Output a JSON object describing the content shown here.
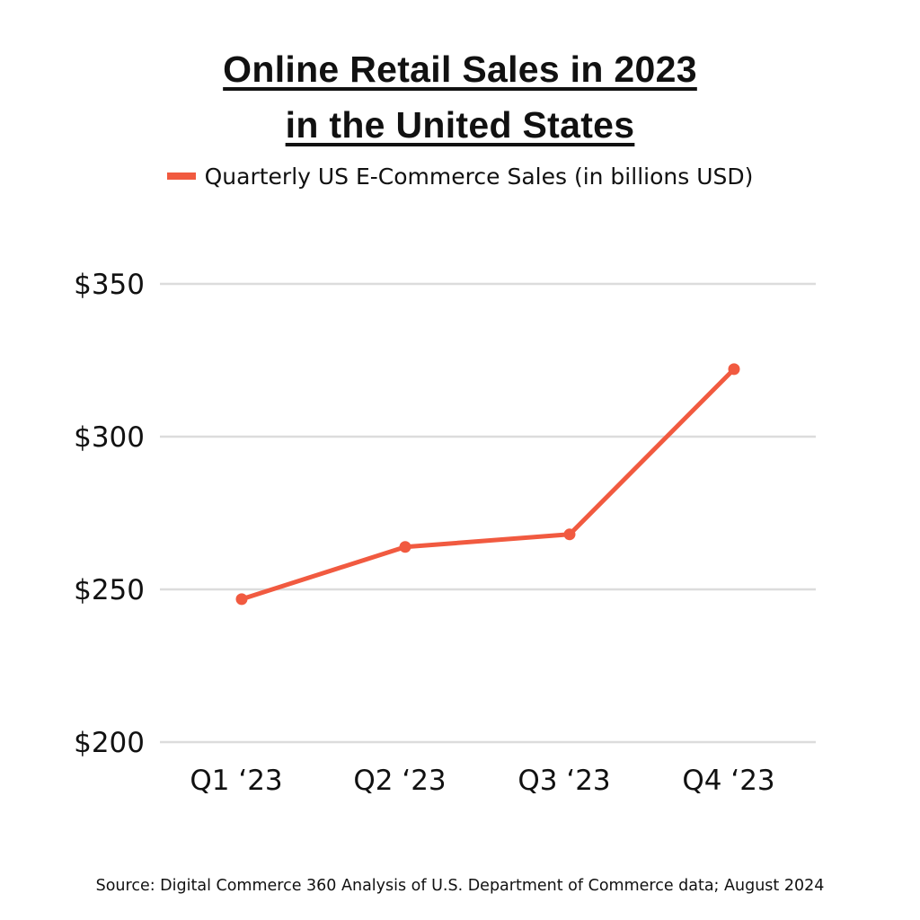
{
  "chart_data": {
    "type": "line",
    "title": "Online Retail Sales in 2023 in the United States",
    "title_lines": [
      "Online Retail Sales in 2023",
      "in the United States"
    ],
    "categories": [
      "Q1 ‘23",
      "Q2 ‘23",
      "Q3 ‘23",
      "Q4 ‘23"
    ],
    "series": [
      {
        "name": "Quarterly US E-Commerce Sales (in billions USD)",
        "values": [
          246.8,
          263.9,
          268.0,
          322.1
        ],
        "color": "#f15a40"
      }
    ],
    "yticks": [
      200,
      250,
      300,
      350
    ],
    "ytick_labels": [
      "$200",
      "$250",
      "$300",
      "$350"
    ],
    "ylim": [
      200,
      350
    ],
    "xlabel": "",
    "ylabel": "",
    "grid": "horizontal",
    "legend_placement": "top",
    "source": "Source: Digital Commerce 360 Analysis of U.S. Department of Commerce data; August 2024"
  }
}
